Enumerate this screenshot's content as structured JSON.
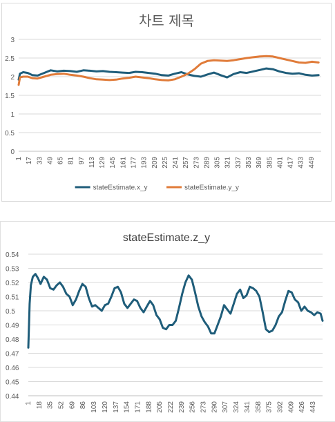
{
  "chart_data": [
    {
      "type": "line",
      "title": "차트 제목",
      "xlabel": "",
      "ylabel": "",
      "ylim": [
        0,
        3
      ],
      "yticks": [
        0,
        0.5,
        1,
        1.5,
        2,
        2.5,
        3
      ],
      "ytick_labels": [
        "0",
        "0.5",
        "1",
        "1.5",
        "2",
        "2.5",
        "3"
      ],
      "xrange": [
        1,
        464
      ],
      "xticks": [
        1,
        17,
        33,
        49,
        65,
        81,
        97,
        113,
        129,
        145,
        161,
        177,
        193,
        209,
        225,
        241,
        257,
        273,
        289,
        305,
        321,
        337,
        353,
        369,
        385,
        401,
        417,
        433,
        449
      ],
      "xtick_labels": [
        "1",
        "17",
        "33",
        "49",
        "65",
        "81",
        "97",
        "113",
        "129",
        "145",
        "161",
        "177",
        "193",
        "209",
        "225",
        "241",
        "257",
        "273",
        "289",
        "305",
        "321",
        "337",
        "353",
        "369",
        "385",
        "401",
        "417",
        "433",
        "449"
      ],
      "grid": "horizontal",
      "legend_position": "bottom",
      "series": [
        {
          "name": "stateEstimate.x_y",
          "color": "#1f5d7a",
          "x": [
            1,
            3,
            8,
            15,
            22,
            30,
            40,
            50,
            60,
            70,
            80,
            90,
            100,
            110,
            120,
            130,
            140,
            150,
            160,
            170,
            180,
            190,
            200,
            210,
            220,
            230,
            240,
            250,
            260,
            270,
            280,
            290,
            300,
            310,
            320,
            330,
            340,
            350,
            360,
            370,
            380,
            390,
            400,
            410,
            420,
            430,
            440,
            450,
            460
          ],
          "y": [
            1.92,
            2.08,
            2.12,
            2.1,
            2.04,
            2.03,
            2.1,
            2.17,
            2.14,
            2.16,
            2.15,
            2.13,
            2.17,
            2.16,
            2.14,
            2.15,
            2.13,
            2.12,
            2.11,
            2.1,
            2.13,
            2.12,
            2.1,
            2.08,
            2.04,
            2.03,
            2.08,
            2.12,
            2.06,
            2.02,
            2.0,
            2.06,
            2.11,
            2.04,
            1.98,
            2.07,
            2.12,
            2.1,
            2.14,
            2.18,
            2.22,
            2.2,
            2.14,
            2.1,
            2.08,
            2.09,
            2.05,
            2.03,
            2.04
          ]
        },
        {
          "name": "stateEstimate.y_y",
          "color": "#e07b39",
          "x": [
            1,
            3,
            8,
            15,
            22,
            30,
            40,
            50,
            60,
            70,
            80,
            90,
            100,
            110,
            120,
            130,
            140,
            150,
            160,
            170,
            180,
            190,
            200,
            210,
            220,
            230,
            240,
            250,
            260,
            270,
            280,
            290,
            300,
            310,
            320,
            330,
            340,
            350,
            360,
            370,
            380,
            390,
            400,
            410,
            420,
            430,
            440,
            450,
            460
          ],
          "y": [
            1.78,
            1.98,
            2.0,
            2.0,
            1.96,
            1.95,
            2.0,
            2.05,
            2.07,
            2.08,
            2.05,
            2.03,
            2.0,
            1.96,
            1.93,
            1.92,
            1.91,
            1.92,
            1.95,
            1.97,
            2.0,
            1.98,
            1.96,
            1.93,
            1.91,
            1.9,
            1.93,
            2.0,
            2.08,
            2.2,
            2.35,
            2.42,
            2.44,
            2.43,
            2.42,
            2.44,
            2.47,
            2.5,
            2.52,
            2.54,
            2.55,
            2.54,
            2.5,
            2.46,
            2.42,
            2.38,
            2.37,
            2.4,
            2.38
          ]
        }
      ]
    },
    {
      "type": "line",
      "title": "stateEstimate.z_y",
      "xlabel": "",
      "ylabel": "",
      "ylim": [
        0.44,
        0.54
      ],
      "yticks": [
        0.44,
        0.45,
        0.46,
        0.47,
        0.48,
        0.49,
        0.5,
        0.51,
        0.52,
        0.53,
        0.54
      ],
      "ytick_labels": [
        "0.44",
        "0.45",
        "0.46",
        "0.47",
        "0.48",
        "0.49",
        "0.5",
        "0.51",
        "0.52",
        "0.53",
        "0.54"
      ],
      "xrange": [
        1,
        458
      ],
      "xticks": [
        1,
        18,
        35,
        52,
        69,
        86,
        103,
        120,
        137,
        154,
        171,
        188,
        205,
        222,
        239,
        256,
        273,
        290,
        307,
        324,
        341,
        358,
        375,
        392,
        409,
        426,
        443
      ],
      "xtick_labels": [
        "1",
        "18",
        "35",
        "52",
        "69",
        "86",
        "103",
        "120",
        "137",
        "154",
        "171",
        "188",
        "205",
        "222",
        "239",
        "256",
        "273",
        "290",
        "307",
        "324",
        "341",
        "358",
        "375",
        "392",
        "409",
        "426",
        "443"
      ],
      "grid": "horizontal",
      "legend_position": "none",
      "series": [
        {
          "name": "",
          "color": "#1f5d7a",
          "x": [
            1,
            3,
            5,
            8,
            12,
            16,
            20,
            25,
            30,
            35,
            40,
            45,
            50,
            55,
            60,
            65,
            70,
            75,
            80,
            85,
            90,
            95,
            100,
            105,
            110,
            115,
            120,
            125,
            130,
            135,
            140,
            145,
            150,
            155,
            160,
            165,
            170,
            175,
            180,
            185,
            190,
            195,
            200,
            205,
            210,
            215,
            220,
            225,
            230,
            235,
            240,
            245,
            250,
            255,
            260,
            265,
            270,
            275,
            280,
            285,
            290,
            295,
            300,
            305,
            310,
            315,
            320,
            325,
            330,
            335,
            340,
            345,
            350,
            355,
            360,
            365,
            370,
            375,
            380,
            385,
            390,
            395,
            400,
            405,
            410,
            415,
            420,
            425,
            430,
            435,
            440,
            445,
            450,
            455,
            458
          ],
          "y": [
            0.474,
            0.505,
            0.518,
            0.524,
            0.526,
            0.523,
            0.519,
            0.524,
            0.522,
            0.516,
            0.515,
            0.518,
            0.52,
            0.517,
            0.512,
            0.51,
            0.504,
            0.508,
            0.514,
            0.519,
            0.517,
            0.509,
            0.503,
            0.504,
            0.502,
            0.5,
            0.504,
            0.505,
            0.51,
            0.516,
            0.517,
            0.513,
            0.505,
            0.502,
            0.505,
            0.508,
            0.507,
            0.502,
            0.499,
            0.503,
            0.507,
            0.504,
            0.497,
            0.494,
            0.488,
            0.487,
            0.49,
            0.49,
            0.493,
            0.502,
            0.512,
            0.52,
            0.525,
            0.522,
            0.513,
            0.503,
            0.496,
            0.492,
            0.489,
            0.484,
            0.484,
            0.49,
            0.496,
            0.504,
            0.501,
            0.498,
            0.505,
            0.512,
            0.515,
            0.509,
            0.511,
            0.517,
            0.516,
            0.514,
            0.51,
            0.499,
            0.487,
            0.485,
            0.486,
            0.49,
            0.496,
            0.499,
            0.507,
            0.514,
            0.513,
            0.508,
            0.506,
            0.5,
            0.503,
            0.5,
            0.499,
            0.497,
            0.499,
            0.498,
            0.493
          ]
        }
      ]
    }
  ]
}
